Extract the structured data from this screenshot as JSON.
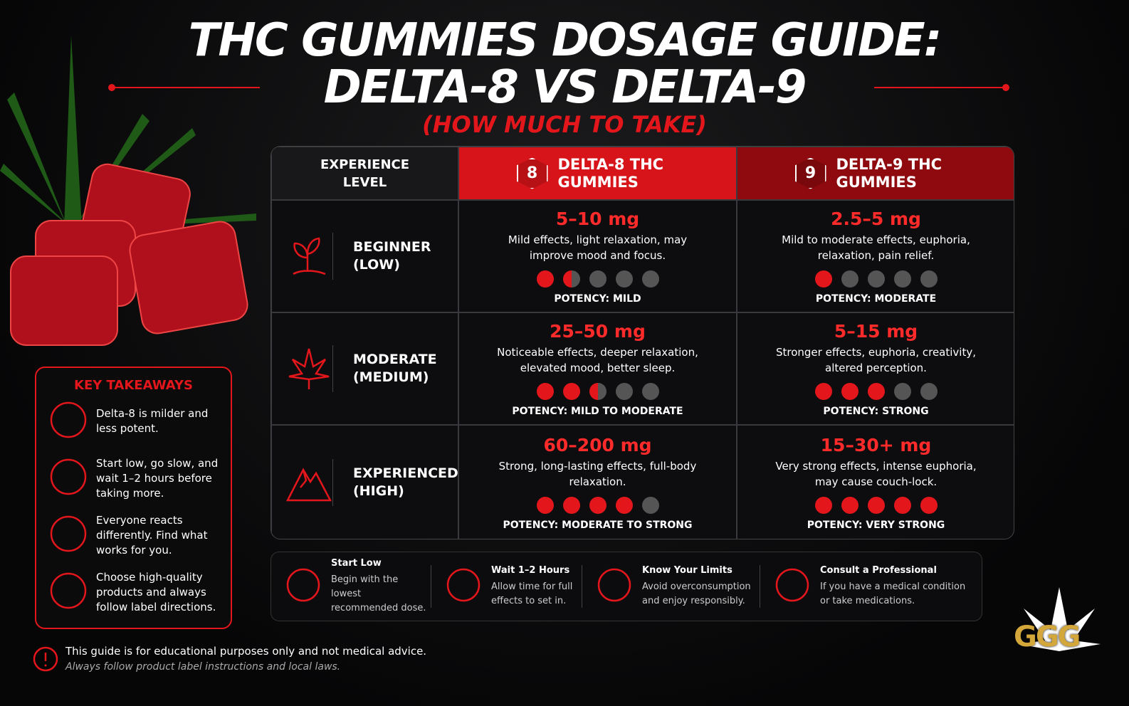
{
  "header": {
    "title_line1": "THC GUMMIES DOSAGE GUIDE:",
    "title_line2": "DELTA-8 VS DELTA-9",
    "subtitle": "(HOW MUCH TO TAKE)"
  },
  "table": {
    "headers": [
      "EXPERIENCE LEVEL",
      "DELTA-8 THC GUMMIES",
      "DELTA-9 THC GUMMIES"
    ],
    "header_badges": [
      "8",
      "9"
    ],
    "potency_scale": 5,
    "rows": [
      {
        "level": "BEGINNER (LOW)",
        "delta8": {
          "dose": "5–10 mg",
          "effects": "Mild effects, light relaxation, may improve mood and focus.",
          "potency": "POTENCY: MILD",
          "dots": 1.5
        },
        "delta9": {
          "dose": "2.5–5 mg",
          "effects": "Mild to moderate effects, euphoria, relaxation, pain relief.",
          "potency": "POTENCY: MODERATE",
          "dots": 1
        }
      },
      {
        "level": "MODERATE (MEDIUM)",
        "delta8": {
          "dose": "25–50 mg",
          "effects": "Noticeable effects, deeper relaxation, elevated mood, better sleep.",
          "potency": "POTENCY: MILD TO MODERATE",
          "dots": 2.5
        },
        "delta9": {
          "dose": "5–15 mg",
          "effects": "Stronger effects, euphoria, creativity, altered perception.",
          "potency": "POTENCY: STRONG",
          "dots": 3
        }
      },
      {
        "level": "EXPERIENCED (HIGH)",
        "delta8": {
          "dose": "60–200 mg",
          "effects": "Strong, long-lasting effects, full-body relaxation.",
          "potency": "POTENCY: MODERATE TO STRONG",
          "dots": 4
        },
        "delta9": {
          "dose": "15–30+ mg",
          "effects": "Very strong effects, intense euphoria, may cause couch-lock.",
          "potency": "POTENCY: VERY STRONG",
          "dots": 5
        }
      }
    ]
  },
  "key_takeaways": {
    "title": "KEY TAKEAWAYS",
    "items": [
      "Delta-8 is milder and less potent.",
      "Start low, go slow, and wait 1–2 hours before taking more.",
      "Everyone reacts differently. Find what works for you.",
      "Choose high-quality products and always follow label directions."
    ]
  },
  "tips": [
    {
      "title": "Start Low",
      "text": "Begin with the lowest recommended dose."
    },
    {
      "title": "Wait 1–2 Hours",
      "text": "Allow time for full effects to set in."
    },
    {
      "title": "Know Your Limits",
      "text": "Avoid overconsumption and enjoy responsibly."
    },
    {
      "title": "Consult a Professional",
      "text": "If you have a medical condition or take medications."
    }
  ],
  "disclaimer": {
    "text": "This guide is for educational purposes only and not medical advice.",
    "note": "Always follow product label instructions and local laws."
  },
  "logo": "GGG"
}
